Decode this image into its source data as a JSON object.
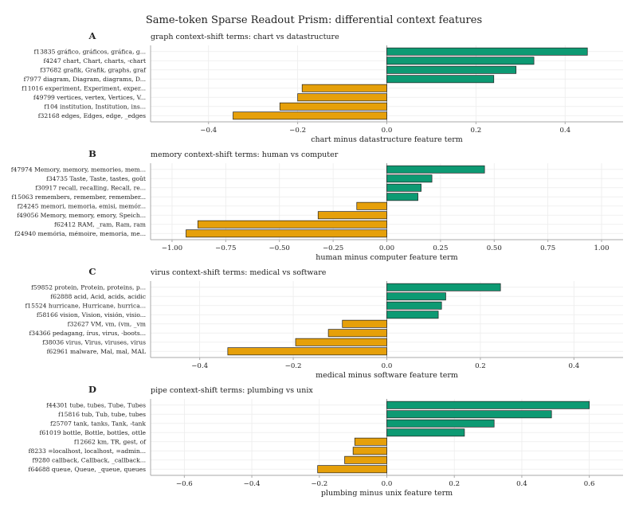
{
  "figure": {
    "title": "Same-token Sparse Readout Prism: differential context features",
    "colors": {
      "positive": "#0d9a73",
      "negative": "#e6a00a",
      "edge": "#222222",
      "grid": "#ececec",
      "zero": "#9a9a9a",
      "axis": "#aaaaaa"
    }
  },
  "chart_data": [
    {
      "type": "bar",
      "orientation": "horizontal",
      "letter": "A",
      "title": "graph context-shift terms: chart vs datastructure",
      "xlabel": "chart minus datastructure feature term",
      "xlim": [
        -0.53,
        0.53
      ],
      "xticks": [
        -0.4,
        -0.2,
        0.0,
        0.2,
        0.4
      ],
      "xtick_labels": [
        "−0.4",
        "−0.2",
        "0.0",
        "0.2",
        "0.4"
      ],
      "categories": [
        "f13835 gráfico, gráficos, gráfica, g...",
        "f4247 chart, Chart, charts, -chart",
        "f37682 grafik, Grafik, graphs, graf",
        "f7977 diagram, Diagram, diagrams, D...",
        "f11016 experiment, Experiment, exper...",
        "f49799 vertices, vertex, Vertices, V...",
        "f104 institution, Institution, ins...",
        "f32168 edges, Edges, edge, _edges"
      ],
      "values": [
        0.45,
        0.33,
        0.29,
        0.24,
        -0.19,
        -0.2,
        -0.24,
        -0.345
      ]
    },
    {
      "type": "bar",
      "orientation": "horizontal",
      "letter": "B",
      "title": "memory context-shift terms: human vs computer",
      "xlabel": "human minus computer feature term",
      "xlim": [
        -1.1,
        1.1
      ],
      "xticks": [
        -1.0,
        -0.75,
        -0.5,
        -0.25,
        0.0,
        0.25,
        0.5,
        0.75,
        1.0
      ],
      "xtick_labels": [
        "−1.00",
        "−0.75",
        "−0.50",
        "−0.25",
        "0.00",
        "0.25",
        "0.50",
        "0.75",
        "1.00"
      ],
      "categories": [
        "f47974 Memory, memory, memories, mem...",
        "f34735 Taste, Taste, tastes, goût",
        "f30917 recall, recalling, Recall, re...",
        "f15063 remembers, remember, remember...",
        "f24245 memori, memoria, emisi, memór...",
        "f49056 Memory, memory, emory, Speich...",
        "f62412 RAM, _ram, Ram, ram",
        "f24940 memória, mémoire, memoria, me..."
      ],
      "values": [
        0.455,
        0.21,
        0.16,
        0.145,
        -0.14,
        -0.32,
        -0.88,
        -0.935
      ]
    },
    {
      "type": "bar",
      "orientation": "horizontal",
      "letter": "C",
      "title": "virus context-shift terms: medical vs software",
      "xlabel": "medical minus software feature term",
      "xlim": [
        -0.505,
        0.505
      ],
      "xticks": [
        -0.4,
        -0.2,
        0.0,
        0.2,
        0.4
      ],
      "xtick_labels": [
        "−0.4",
        "−0.2",
        "0.0",
        "0.2",
        "0.4"
      ],
      "categories": [
        "f59852 protein, Protein, proteins, p...",
        "f62888 acid, Acid, acids, acidic",
        "f15524 hurricane, Hurricane, hurrica...",
        "f58166 vision, Vision, visión, visio...",
        "f32627 VM, vm, (vm, _vm",
        "f34366 pedagang, írus, virus, -boots...",
        "f38036 virus, Virus, viruses, virus",
        "f62961 malware, Mal, mal, MAL"
      ],
      "values": [
        0.243,
        0.126,
        0.117,
        0.11,
        -0.095,
        -0.125,
        -0.195,
        -0.34
      ]
    },
    {
      "type": "bar",
      "orientation": "horizontal",
      "letter": "D",
      "title": "pipe context-shift terms: plumbing vs unix",
      "xlabel": "plumbing minus unix feature term",
      "xlim": [
        -0.7,
        0.7
      ],
      "xticks": [
        -0.6,
        -0.4,
        -0.2,
        0.0,
        0.2,
        0.4,
        0.6
      ],
      "xtick_labels": [
        "−0.6",
        "−0.4",
        "−0.2",
        "0.0",
        "0.2",
        "0.4",
        "0.6"
      ],
      "categories": [
        "f44301 tube, tubes, Tube, Tubes",
        "f15816 tub, Tub, tube, tubes",
        "f25707 tank, tanks, Tank, -tank",
        "f61019 bottle, Bottle, bottles, ottle",
        "f12662 km, TR, gest, of",
        "f8233 =localhost, localhost, =admin...",
        "f9280 callback, Callback, _callback...",
        "f64688 queue, Queue, _queue, queues"
      ],
      "values": [
        0.6,
        0.488,
        0.318,
        0.23,
        -0.095,
        -0.1,
        -0.125,
        -0.205
      ]
    }
  ]
}
